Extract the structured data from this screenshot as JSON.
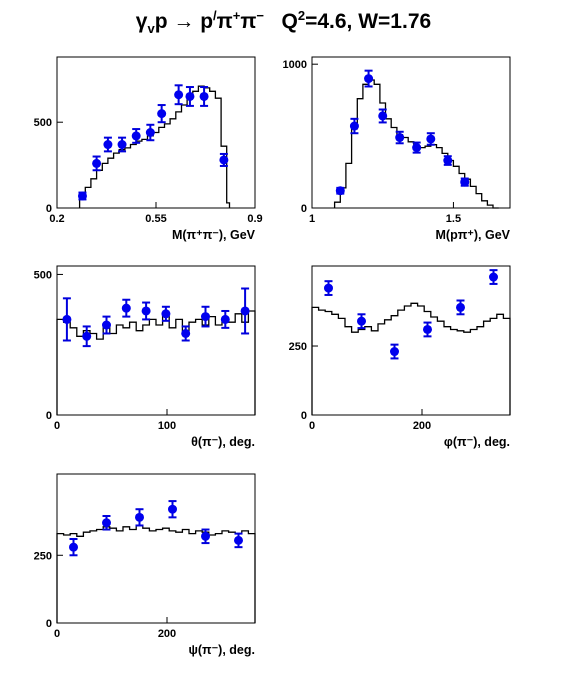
{
  "title": {
    "part_a": "γ",
    "part_a_sub": "v",
    "part_b": "p → p",
    "part_b_sup": "/",
    "part_c": "π",
    "part_c_sup": "+",
    "part_d": "π",
    "part_d_sup": "−",
    "part_e": "   Q",
    "part_e_sup": "2",
    "part_f": "=4.6, W=1.76"
  },
  "chart_data": [
    {
      "type": "line",
      "xlabel": "M(π⁺π⁻), GeV",
      "xlim": [
        0.2,
        0.9
      ],
      "ylim": [
        0,
        880
      ],
      "xticks": [
        0.2,
        0.55,
        0.9
      ],
      "xtick_labels": [
        "0.2",
        "0.55",
        "0.9"
      ],
      "yticks": [
        0,
        500
      ],
      "ytick_labels": [
        "0",
        "500"
      ],
      "model": {
        "edges": [
          0.28,
          0.3,
          0.32,
          0.34,
          0.36,
          0.38,
          0.4,
          0.42,
          0.44,
          0.46,
          0.48,
          0.5,
          0.52,
          0.54,
          0.56,
          0.58,
          0.6,
          0.62,
          0.64,
          0.66,
          0.68,
          0.7,
          0.72,
          0.74,
          0.76,
          0.78,
          0.8,
          0.81
        ],
        "values": [
          60,
          120,
          170,
          220,
          260,
          290,
          320,
          340,
          350,
          370,
          390,
          400,
          420,
          440,
          470,
          490,
          520,
          560,
          600,
          640,
          680,
          710,
          700,
          680,
          640,
          360,
          30
        ]
      },
      "points": {
        "x": [
          0.29,
          0.34,
          0.38,
          0.43,
          0.48,
          0.53,
          0.57,
          0.63,
          0.67,
          0.72,
          0.79
        ],
        "y": [
          70,
          260,
          370,
          370,
          420,
          440,
          550,
          660,
          650,
          650,
          280
        ],
        "err": [
          20,
          40,
          40,
          40,
          40,
          45,
          50,
          55,
          55,
          55,
          35
        ]
      }
    },
    {
      "type": "line",
      "xlabel": "M(pπ⁺), GeV",
      "xlim": [
        1.0,
        1.7
      ],
      "ylim": [
        0,
        1050
      ],
      "xticks": [
        1,
        1.5
      ],
      "xtick_labels": [
        "1",
        "1.5"
      ],
      "yticks": [
        0,
        1000
      ],
      "ytick_labels": [
        "0",
        "1000"
      ],
      "model": {
        "edges": [
          1.08,
          1.1,
          1.12,
          1.14,
          1.16,
          1.18,
          1.2,
          1.22,
          1.24,
          1.26,
          1.28,
          1.3,
          1.32,
          1.34,
          1.36,
          1.38,
          1.4,
          1.42,
          1.44,
          1.46,
          1.48,
          1.5,
          1.52,
          1.54,
          1.56,
          1.58,
          1.6,
          1.62,
          1.64,
          1.66
        ],
        "values": [
          40,
          140,
          310,
          550,
          760,
          860,
          890,
          860,
          730,
          620,
          560,
          510,
          490,
          460,
          430,
          420,
          430,
          440,
          420,
          380,
          330,
          290,
          240,
          200,
          150,
          100,
          50,
          20,
          0
        ]
      },
      "points": {
        "x": [
          1.1,
          1.15,
          1.2,
          1.25,
          1.31,
          1.37,
          1.42,
          1.48,
          1.54
        ],
        "y": [
          120,
          570,
          900,
          640,
          490,
          420,
          480,
          330,
          180
        ],
        "err": [
          20,
          50,
          55,
          45,
          40,
          35,
          40,
          30,
          25
        ]
      }
    },
    {
      "type": "line",
      "xlabel": "θ(π⁻), deg.",
      "xlim": [
        0,
        180
      ],
      "ylim": [
        0,
        530
      ],
      "xticks": [
        0,
        100
      ],
      "xtick_labels": [
        "0",
        "100"
      ],
      "yticks": [
        0,
        500
      ],
      "ytick_labels": [
        "0",
        "500"
      ],
      "model": {
        "edges": [
          0,
          6,
          12,
          18,
          24,
          30,
          36,
          42,
          48,
          54,
          60,
          66,
          72,
          78,
          84,
          90,
          96,
          102,
          108,
          114,
          120,
          126,
          132,
          138,
          144,
          150,
          156,
          162,
          168,
          174,
          180
        ],
        "values": [
          340,
          330,
          310,
          280,
          300,
          290,
          270,
          310,
          290,
          320,
          310,
          330,
          300,
          320,
          340,
          320,
          350,
          310,
          340,
          300,
          330,
          340,
          320,
          350,
          320,
          340,
          330,
          360,
          330,
          370
        ]
      },
      "points": {
        "x": [
          9,
          27,
          45,
          63,
          81,
          99,
          117,
          135,
          153,
          171
        ],
        "y": [
          340,
          280,
          320,
          380,
          370,
          360,
          290,
          350,
          340,
          370
        ],
        "err": [
          75,
          35,
          30,
          30,
          30,
          25,
          25,
          35,
          30,
          80
        ]
      }
    },
    {
      "type": "line",
      "xlabel": "φ(π⁻), deg.",
      "xlim": [
        0,
        360
      ],
      "ylim": [
        0,
        540
      ],
      "xticks": [
        0,
        200
      ],
      "xtick_labels": [
        "0",
        "200"
      ],
      "yticks": [
        0,
        250
      ],
      "ytick_labels": [
        "0",
        "250"
      ],
      "model": {
        "edges": [
          0,
          12,
          24,
          36,
          48,
          60,
          72,
          84,
          96,
          108,
          120,
          132,
          144,
          156,
          168,
          180,
          192,
          204,
          216,
          228,
          240,
          252,
          264,
          276,
          288,
          300,
          312,
          324,
          336,
          348,
          360
        ],
        "values": [
          390,
          380,
          375,
          365,
          350,
          320,
          300,
          310,
          320,
          305,
          330,
          345,
          360,
          380,
          395,
          405,
          395,
          375,
          355,
          340,
          320,
          310,
          305,
          300,
          310,
          320,
          340,
          350,
          365,
          350
        ]
      },
      "points": {
        "x": [
          30,
          90,
          150,
          210,
          270,
          330
        ],
        "y": [
          460,
          340,
          230,
          310,
          390,
          500
        ],
        "err": [
          25,
          25,
          25,
          25,
          25,
          25
        ]
      }
    },
    {
      "type": "line",
      "xlabel": "ψ(π⁻), deg.",
      "xlim": [
        0,
        360
      ],
      "ylim": [
        0,
        550
      ],
      "xticks": [
        0,
        200
      ],
      "xtick_labels": [
        "0",
        "200"
      ],
      "yticks": [
        0,
        250
      ],
      "ytick_labels": [
        "0",
        "250"
      ],
      "model": {
        "edges": [
          0,
          12,
          24,
          36,
          48,
          60,
          72,
          84,
          96,
          108,
          120,
          132,
          144,
          156,
          168,
          180,
          192,
          204,
          216,
          228,
          240,
          252,
          264,
          276,
          288,
          300,
          312,
          324,
          336,
          348,
          360
        ],
        "values": [
          330,
          325,
          330,
          320,
          335,
          340,
          345,
          355,
          350,
          340,
          355,
          345,
          360,
          350,
          340,
          345,
          350,
          340,
          335,
          345,
          330,
          340,
          335,
          325,
          330,
          340,
          335,
          330,
          340,
          330
        ]
      },
      "points": {
        "x": [
          30,
          90,
          150,
          210,
          270,
          330
        ],
        "y": [
          280,
          370,
          390,
          420,
          320,
          305
        ],
        "err": [
          30,
          25,
          30,
          30,
          25,
          25
        ]
      }
    }
  ]
}
